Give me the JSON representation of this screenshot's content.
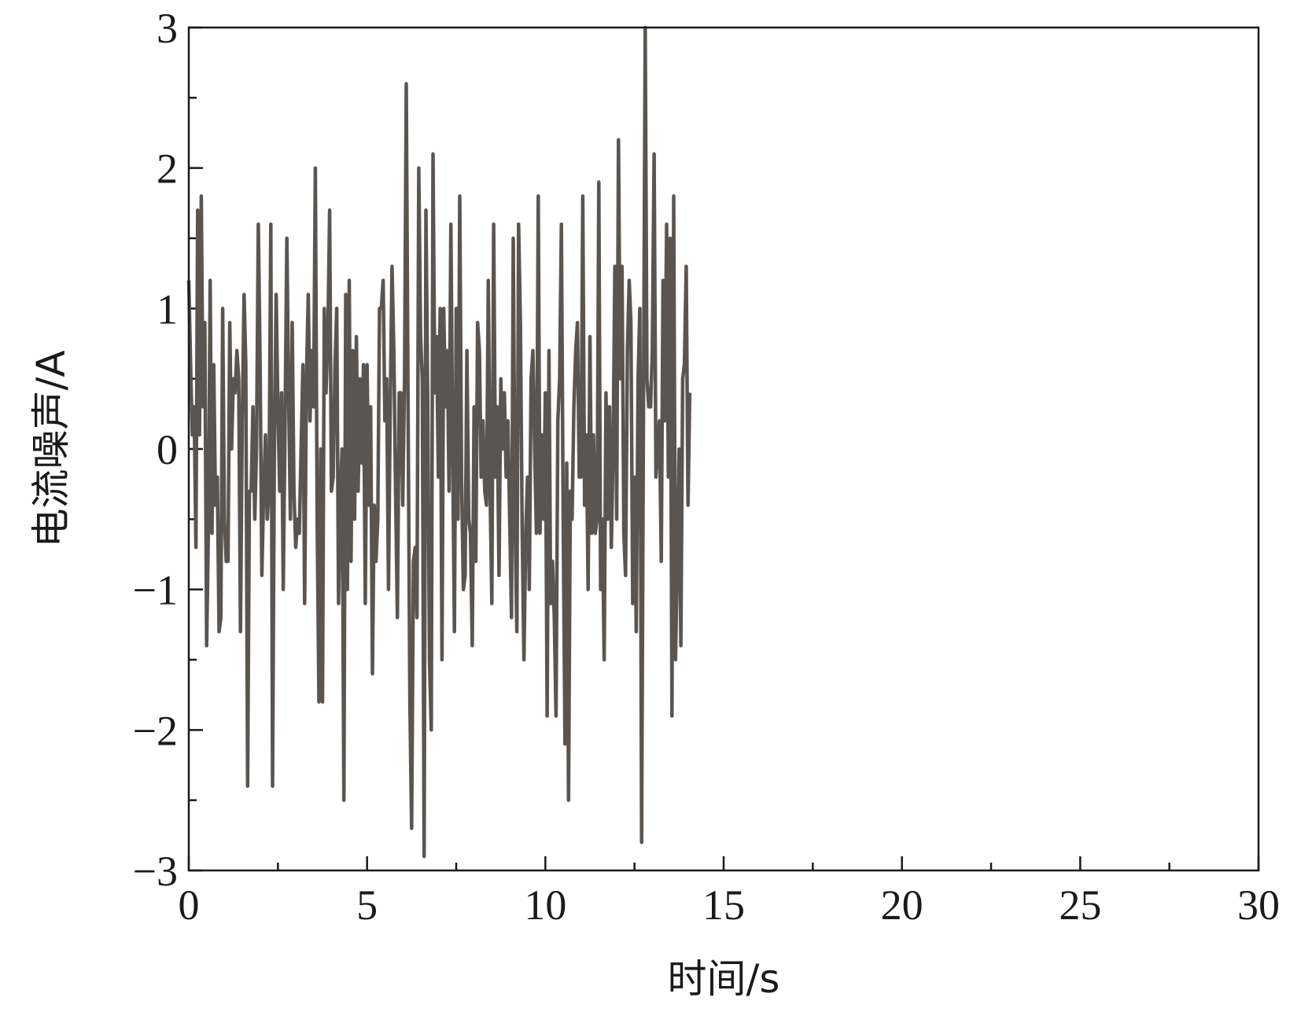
{
  "chart_data": {
    "type": "line",
    "title": "",
    "xlabel": "时间/s",
    "ylabel": "电流噪声/A",
    "xlim": [
      0,
      30
    ],
    "ylim": [
      -3,
      3
    ],
    "x_major_ticks": [
      0,
      5,
      10,
      15,
      20,
      25,
      30
    ],
    "x_tick_labels": [
      "0",
      "5",
      "10",
      "15",
      "20",
      "25",
      "30"
    ],
    "x_minor_step": 2.5,
    "y_major_ticks": [
      -3,
      -2,
      -1,
      0,
      1,
      2,
      3
    ],
    "y_tick_labels": [
      "−3",
      "−2",
      "−1",
      "0",
      "1",
      "2",
      "3"
    ],
    "y_minor_step": 0.5,
    "grid": false,
    "legend": "none",
    "line_color": "#5a5550",
    "series": [
      {
        "x_start": 0,
        "x_step": 0.05,
        "values": [
          1.2,
          0.6,
          0.1,
          0.3,
          -0.7,
          1.7,
          0.1,
          1.8,
          0.3,
          0.9,
          -1.4,
          -0.6,
          1.2,
          -0.6,
          0.6,
          -0.4,
          -0.2,
          -1.3,
          -1.2,
          1.0,
          -0.5,
          -0.8,
          -0.8,
          0.9,
          0.0,
          0.5,
          0.4,
          0.7,
          0.5,
          -1.3,
          0.2,
          1.1,
          0.6,
          -2.4,
          -0.3,
          -0.3,
          0.3,
          -0.5,
          0.0,
          1.6,
          0.6,
          -0.9,
          -0.3,
          0.1,
          -0.5,
          -0.3,
          1.6,
          -2.4,
          0.0,
          1.1,
          0.3,
          -0.3,
          0.4,
          -1.0,
          0.2,
          1.5,
          0.4,
          -0.5,
          0.9,
          -0.3,
          -0.7,
          -0.5,
          -0.6,
          0.0,
          0.6,
          -1.1,
          0.5,
          1.1,
          0.2,
          0.7,
          0.3,
          2.0,
          -0.5,
          -1.8,
          0.0,
          -1.8,
          1.0,
          0.4,
          0.8,
          1.7,
          -0.3,
          -0.2,
          0.6,
          1.0,
          -1.1,
          -0.3,
          0.0,
          -2.5,
          1.1,
          -1.0,
          1.2,
          -0.8,
          0.7,
          -0.5,
          0.8,
          -0.3,
          0.5,
          -0.1,
          0.6,
          -1.1,
          0.6,
          -0.4,
          0.3,
          -1.6,
          -0.4,
          -0.8,
          -0.5,
          1.0,
          1.0,
          1.2,
          0.2,
          0.5,
          -1.0,
          0.3,
          1.3,
          0.7,
          -0.3,
          -1.2,
          0.4,
          0.4,
          -0.4,
          0.5,
          2.6,
          0.3,
          -1.8,
          -2.7,
          -0.8,
          -0.7,
          -1.2,
          2.0,
          0.8,
          0.5,
          -2.9,
          1.7,
          0.4,
          -1.5,
          -2.0,
          2.1,
          0.4,
          0.8,
          -0.2,
          1.0,
          -1.5,
          1.0,
          0.3,
          0.7,
          -0.3,
          1.6,
          0.0,
          -1.3,
          1.0,
          -0.5,
          1.8,
          -0.2,
          -1.0,
          -0.9,
          0.7,
          -0.5,
          -0.6,
          -1.4,
          0.3,
          -0.8,
          0.9,
          0.7,
          -0.2,
          0.2,
          -0.3,
          -0.4,
          1.2,
          -0.3,
          -1.1,
          1.6,
          -0.2,
          0.3,
          -0.9,
          0.5,
          0.0,
          0.4,
          -0.2,
          0.2,
          -0.5,
          -1.2,
          1.5,
          -0.5,
          -1.3,
          1.6,
          0.9,
          -0.6,
          -1.5,
          -0.6,
          -0.2,
          -1.0,
          0.5,
          0.7,
          0.0,
          -0.6,
          1.8,
          -0.6,
          0.1,
          -0.5,
          0.4,
          -1.9,
          0.7,
          -1.1,
          -0.8,
          -1.2,
          -1.9,
          0.2,
          0.5,
          1.6,
          -0.5,
          -2.1,
          -0.1,
          -2.5,
          -0.3,
          -0.5,
          0.3,
          0.7,
          0.9,
          -0.2,
          -0.2,
          1.8,
          -0.4,
          0.1,
          -1.0,
          0.8,
          -0.6,
          0.1,
          -0.6,
          -0.5,
          1.9,
          -1.0,
          -0.5,
          -1.5,
          0.4,
          -0.5,
          0.3,
          -0.7,
          0.0,
          1.3,
          -0.5,
          2.2,
          0.5,
          1.3,
          -0.6,
          -0.9,
          0.7,
          1.2,
          0.9,
          -1.1,
          -0.2,
          -1.3,
          0.5,
          1.0,
          -2.8,
          0.2,
          3.0,
          0.5,
          0.3,
          0.3,
          0.7,
          2.1,
          -0.2,
          0.0,
          0.2,
          -0.8,
          1.2,
          0.2,
          1.6,
          -0.2,
          1.5,
          -1.9,
          1.8,
          -1.5,
          -0.8,
          0.0,
          -1.4,
          0.5,
          0.6,
          1.3,
          -0.4,
          0.4
        ]
      }
    ]
  }
}
